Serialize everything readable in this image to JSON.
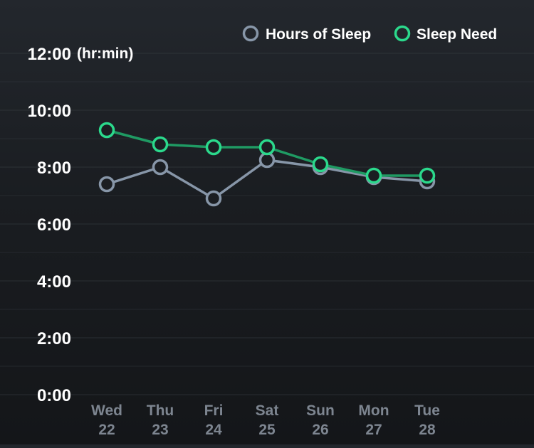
{
  "chart_data": {
    "type": "line",
    "y_unit_label": "(hr:min)",
    "categories": [
      {
        "day": "Wed",
        "date": "22"
      },
      {
        "day": "Thu",
        "date": "23"
      },
      {
        "day": "Fri",
        "date": "24"
      },
      {
        "day": "Sat",
        "date": "25"
      },
      {
        "day": "Sun",
        "date": "26"
      },
      {
        "day": "Mon",
        "date": "27"
      },
      {
        "day": "Tue",
        "date": "28"
      }
    ],
    "y_ticks": [
      {
        "value": 0,
        "label": "0:00"
      },
      {
        "value": 2,
        "label": "2:00"
      },
      {
        "value": 4,
        "label": "4:00"
      },
      {
        "value": 6,
        "label": "6:00"
      },
      {
        "value": 8,
        "label": "8:00"
      },
      {
        "value": 10,
        "label": "10:00"
      },
      {
        "value": 12,
        "label": "12:00"
      }
    ],
    "ylim": [
      0,
      12
    ],
    "grid": true,
    "legend_position": "top-right",
    "series": [
      {
        "name": "Hours of Sleep",
        "color": "#8796a8",
        "values": [
          7.4,
          8.0,
          6.9,
          8.25,
          8.0,
          7.65,
          7.5
        ]
      },
      {
        "name": "Sleep Need",
        "color": "#2bd98c",
        "line_color": "#1f9a63",
        "values": [
          9.3,
          8.8,
          8.7,
          8.7,
          8.1,
          7.7,
          7.7
        ]
      }
    ]
  }
}
